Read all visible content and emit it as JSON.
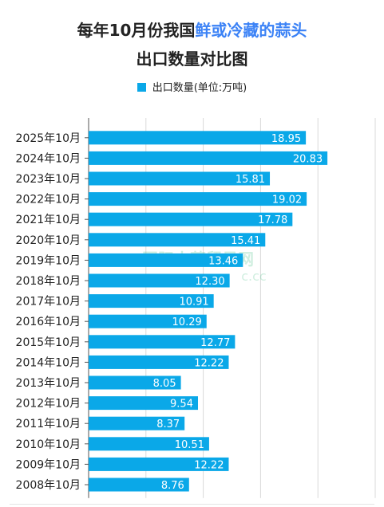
{
  "title": {
    "line1_plain": "每年10月份我国",
    "line1_highlight": "鲜或冷藏的蒜头",
    "line2": "出口数量对比图",
    "highlight_color": "#3b82f6"
  },
  "legend": {
    "label": "出口数量(单位:万吨)",
    "color": "#0aa8e8"
  },
  "watermark": {
    "text": "国际大蒜贸易网",
    "subtext": "c.cc"
  },
  "chart_data": {
    "type": "bar",
    "orientation": "horizontal",
    "categories": [
      "2025年10月",
      "2024年10月",
      "2023年10月",
      "2022年10月",
      "2021年10月",
      "2020年10月",
      "2019年10月",
      "2018年10月",
      "2017年10月",
      "2016年10月",
      "2015年10月",
      "2014年10月",
      "2013年10月",
      "2012年10月",
      "2011年10月",
      "2010年10月",
      "2009年10月",
      "2008年10月"
    ],
    "series": [
      {
        "name": "出口数量(单位:万吨)",
        "values": [
          18.95,
          20.83,
          15.81,
          19.02,
          17.78,
          15.41,
          13.46,
          12.3,
          10.91,
          10.29,
          12.77,
          12.22,
          8.05,
          9.54,
          8.37,
          10.51,
          12.22,
          8.76
        ],
        "labels": [
          "18.95",
          "20.83",
          "15.81",
          "19.02",
          "17.78",
          "15.41",
          "13.46",
          "12.30",
          "10.91",
          "10.29",
          "12.77",
          "12.22",
          "8.05",
          "9.54",
          "8.37",
          "10.51",
          "12.22",
          "8.76"
        ]
      }
    ],
    "xlim": [
      0,
      25
    ],
    "grid": true,
    "legend_position": "top"
  }
}
